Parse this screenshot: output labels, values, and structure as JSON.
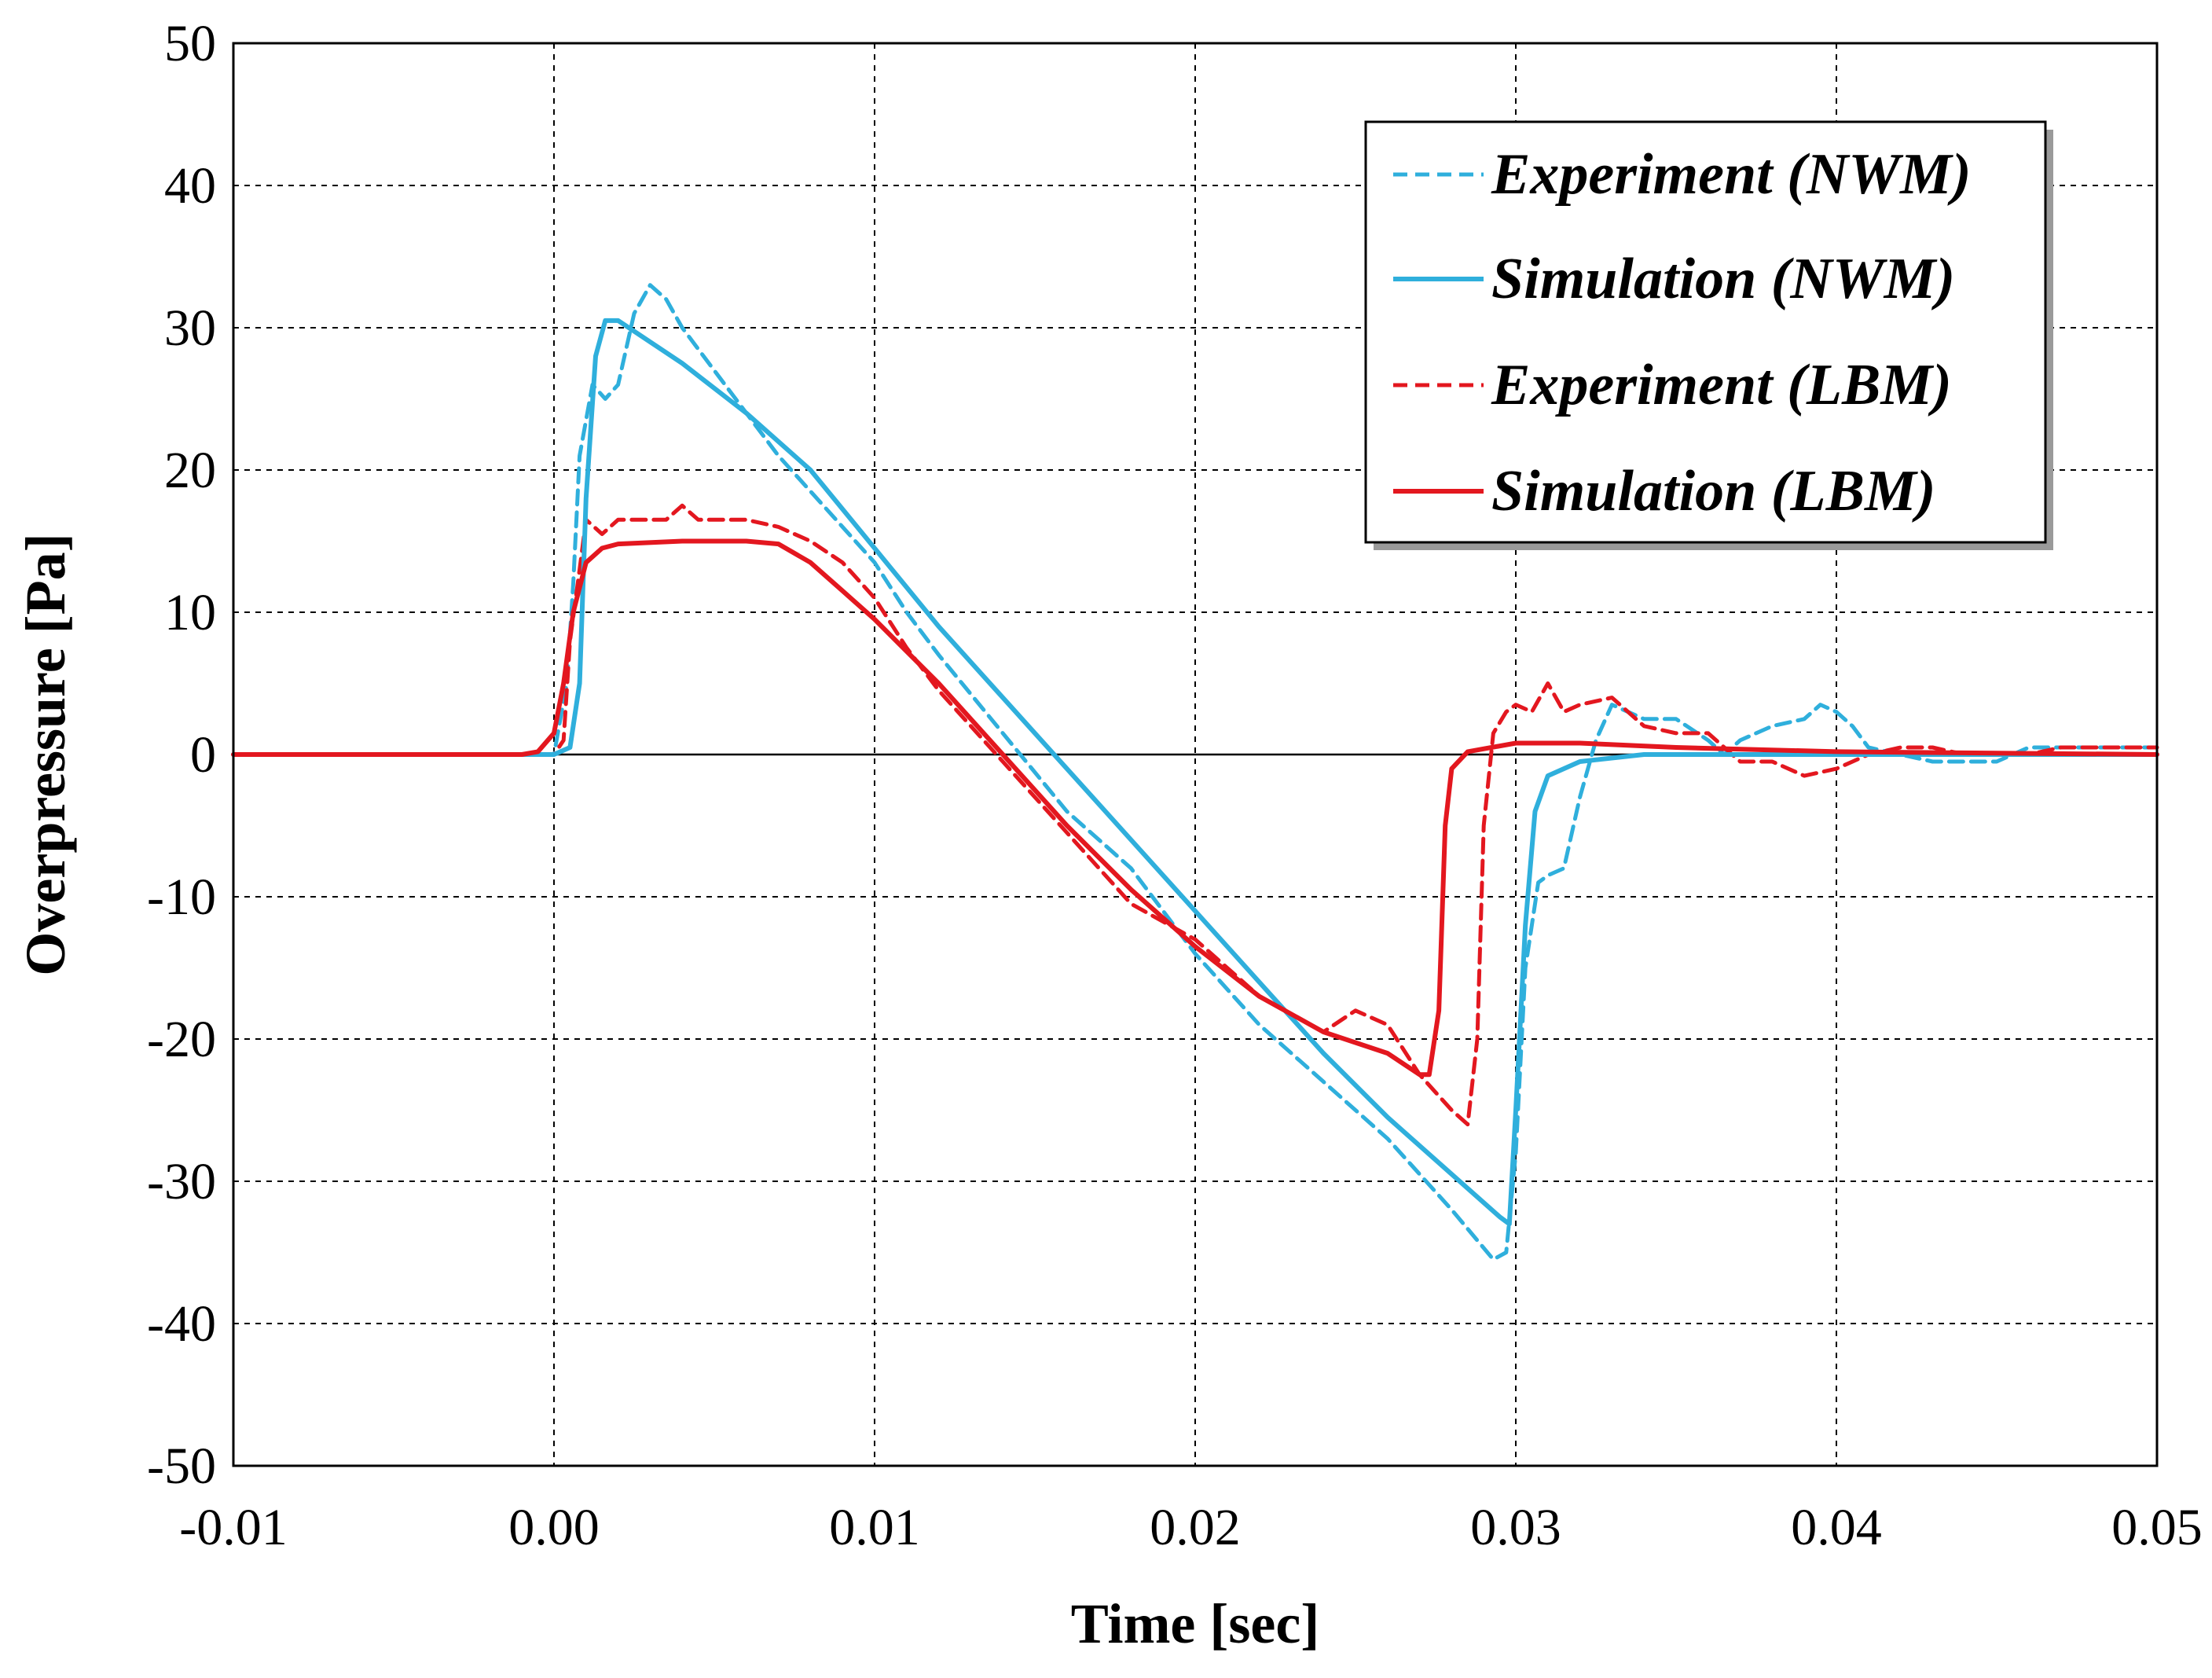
{
  "chart_data": {
    "type": "line",
    "title": "",
    "xlabel": "Time [sec]",
    "ylabel": "Overpressure [Pa]",
    "xlim": [
      -0.01,
      0.05
    ],
    "ylim": [
      -50,
      50
    ],
    "xticks": [
      -0.01,
      0.0,
      0.01,
      0.02,
      0.03,
      0.04,
      0.05
    ],
    "xtick_labels": [
      "-0.01",
      "0.00",
      "0.01",
      "0.02",
      "0.03",
      "0.04",
      "0.05"
    ],
    "yticks": [
      -50,
      -40,
      -30,
      -20,
      -10,
      0,
      10,
      20,
      30,
      40,
      50
    ],
    "ytick_labels": [
      "-50",
      "-40",
      "-30",
      "-20",
      "-10",
      "0",
      "10",
      "20",
      "30",
      "40",
      "50"
    ],
    "grid": true,
    "legend_position": "top-right",
    "series": [
      {
        "name": "Experiment (NWM)",
        "color": "#2FAFDC",
        "style": "dashed",
        "x": [
          -0.01,
          0.0,
          0.0004,
          0.0006,
          0.0008,
          0.0012,
          0.0016,
          0.002,
          0.0025,
          0.003,
          0.0035,
          0.004,
          0.005,
          0.006,
          0.007,
          0.008,
          0.009,
          0.01,
          0.011,
          0.012,
          0.014,
          0.016,
          0.018,
          0.02,
          0.022,
          0.024,
          0.026,
          0.028,
          0.0293,
          0.0297,
          0.03,
          0.0303,
          0.0307,
          0.031,
          0.0315,
          0.032,
          0.0325,
          0.033,
          0.034,
          0.035,
          0.036,
          0.0365,
          0.037,
          0.038,
          0.039,
          0.0395,
          0.04,
          0.0405,
          0.041,
          0.042,
          0.043,
          0.044,
          0.045,
          0.046,
          0.047,
          0.048,
          0.049,
          0.05
        ],
        "values": [
          0,
          0,
          5,
          12,
          21,
          26,
          25,
          26,
          31,
          33,
          32,
          30,
          27,
          24,
          21,
          18.5,
          16,
          13.5,
          10,
          7,
          1.5,
          -4,
          -8,
          -14,
          -19,
          -23,
          -27,
          -32,
          -35.5,
          -35,
          -28,
          -15,
          -9,
          -8.5,
          -8,
          -3,
          1,
          3.5,
          2.5,
          2.5,
          1,
          0,
          1,
          2,
          2.5,
          3.5,
          3,
          2,
          0.5,
          0,
          -0.5,
          -0.5,
          -0.5,
          0.5,
          0.5,
          0.5,
          0.5,
          0.5
        ]
      },
      {
        "name": "Simulation (NWM)",
        "color": "#2FAFDC",
        "style": "solid",
        "x": [
          -0.01,
          0.0,
          0.0005,
          0.0008,
          0.001,
          0.0013,
          0.0016,
          0.002,
          0.004,
          0.006,
          0.008,
          0.01,
          0.012,
          0.014,
          0.016,
          0.018,
          0.02,
          0.022,
          0.024,
          0.026,
          0.028,
          0.0295,
          0.0298,
          0.03,
          0.0303,
          0.0306,
          0.031,
          0.032,
          0.034,
          0.036,
          0.04,
          0.045,
          0.05
        ],
        "values": [
          0,
          0,
          0.5,
          5,
          18,
          28,
          30.5,
          30.5,
          27.5,
          24,
          20,
          14.5,
          9,
          4,
          -1,
          -6,
          -11,
          -16,
          -21,
          -25.5,
          -29.5,
          -32.5,
          -33,
          -25,
          -12,
          -4,
          -1.5,
          -0.5,
          0,
          0,
          0,
          0,
          0
        ]
      },
      {
        "name": "Experiment (LBM)",
        "color": "#E3171F",
        "style": "dashed",
        "x": [
          -0.01,
          0.0,
          0.0003,
          0.0005,
          0.0008,
          0.001,
          0.0015,
          0.002,
          0.0025,
          0.003,
          0.0035,
          0.004,
          0.0045,
          0.005,
          0.006,
          0.007,
          0.008,
          0.009,
          0.01,
          0.011,
          0.012,
          0.014,
          0.016,
          0.018,
          0.02,
          0.022,
          0.024,
          0.025,
          0.026,
          0.027,
          0.028,
          0.0285,
          0.0288,
          0.029,
          0.0293,
          0.0297,
          0.03,
          0.0305,
          0.031,
          0.0315,
          0.032,
          0.033,
          0.034,
          0.035,
          0.036,
          0.037,
          0.038,
          0.039,
          0.04,
          0.041,
          0.042,
          0.043,
          0.044,
          0.045,
          0.046,
          0.047,
          0.048,
          0.049,
          0.05
        ],
        "values": [
          0,
          0,
          1,
          8,
          13,
          16.5,
          15.5,
          16.5,
          16.5,
          16.5,
          16.5,
          17.5,
          16.5,
          16.5,
          16.5,
          16,
          15,
          13.5,
          11,
          7.5,
          4.5,
          -0.5,
          -5.5,
          -10.5,
          -13,
          -17,
          -19.5,
          -18,
          -19,
          -22.5,
          -25,
          -26,
          -20,
          -5,
          1.5,
          3,
          3.5,
          3,
          5,
          3,
          3.5,
          4,
          2,
          1.5,
          1.5,
          -0.5,
          -0.5,
          -1.5,
          -1,
          0,
          0.5,
          0.5,
          0,
          0,
          0,
          0.5,
          0.5,
          0.5,
          0.5
        ]
      },
      {
        "name": "Simulation (LBM)",
        "color": "#E3171F",
        "style": "solid",
        "x": [
          -0.01,
          -0.001,
          -0.0005,
          0.0,
          0.0003,
          0.0006,
          0.001,
          0.0015,
          0.002,
          0.004,
          0.006,
          0.007,
          0.008,
          0.009,
          0.01,
          0.012,
          0.014,
          0.016,
          0.018,
          0.02,
          0.022,
          0.024,
          0.026,
          0.027,
          0.0273,
          0.0276,
          0.0278,
          0.028,
          0.0285,
          0.03,
          0.032,
          0.035,
          0.04,
          0.05
        ],
        "values": [
          0,
          0,
          0.2,
          1.5,
          5,
          10,
          13.5,
          14.5,
          14.8,
          15,
          15,
          14.8,
          13.5,
          11.5,
          9.5,
          5,
          0,
          -5,
          -9.5,
          -13.5,
          -17,
          -19.5,
          -21,
          -22.5,
          -22.5,
          -18,
          -5,
          -1,
          0.2,
          0.8,
          0.8,
          0.5,
          0.2,
          0
        ]
      }
    ]
  }
}
